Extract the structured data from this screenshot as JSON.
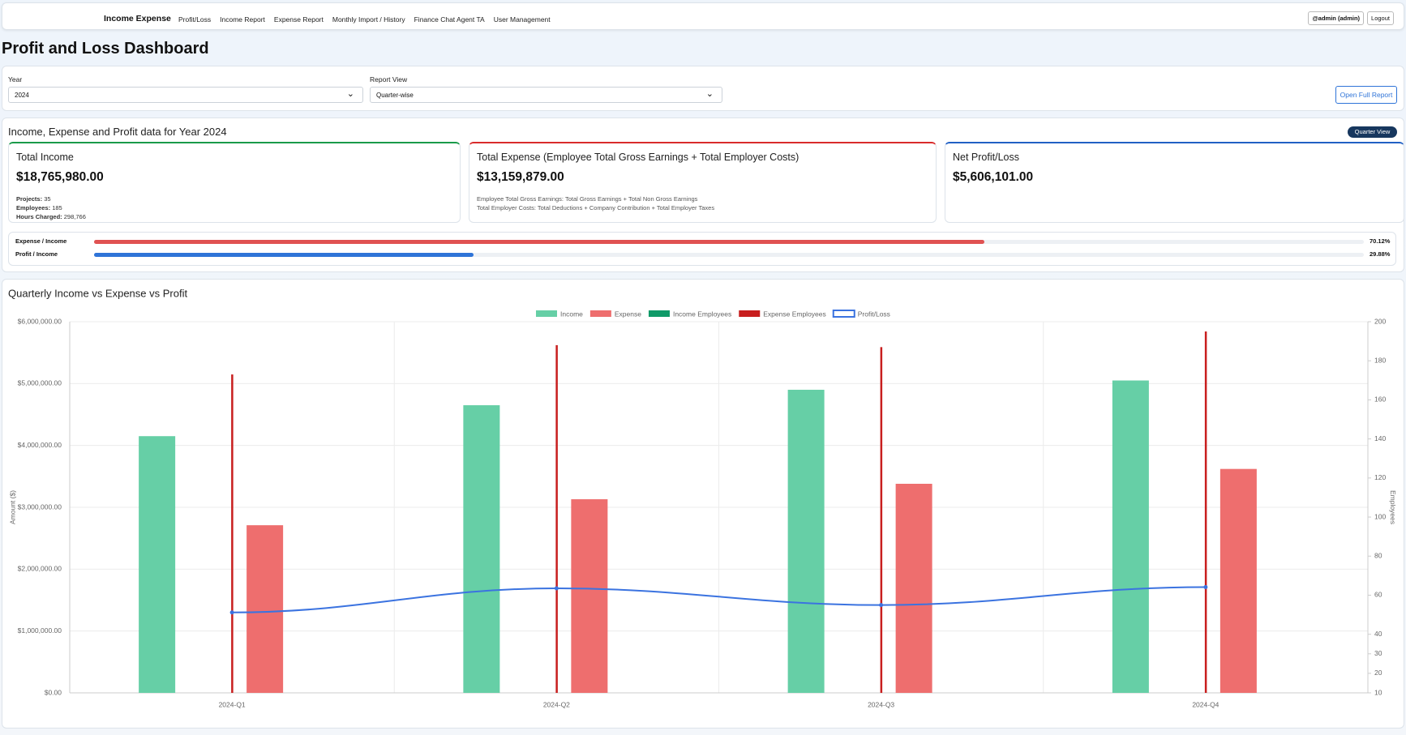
{
  "nav": {
    "brand": "Income Expense",
    "links": [
      "Profit/Loss",
      "Income Report",
      "Expense Report",
      "Monthly Import / History",
      "Finance Chat Agent TA",
      "User Management"
    ],
    "user": "@admin (admin)",
    "logout": "Logout"
  },
  "page_title": "Profit and Loss Dashboard",
  "filters": {
    "year_label": "Year",
    "year": "2024",
    "view_label": "Report View",
    "view": "Quarter-wise",
    "button": "Open Full Report"
  },
  "summary": {
    "title": "Income, Expense and Profit data for Year 2024",
    "badge": "Quarter View",
    "cards": [
      {
        "title": "Total Income",
        "value": "$18,765,980.00",
        "details": [
          {
            "label": "Projects:",
            "value": "35"
          },
          {
            "label": "Employees:",
            "value": "185"
          },
          {
            "label": "Hours Charged:",
            "value": "298,766"
          }
        ]
      },
      {
        "title": "Total Expense (Employee Total Gross Earnings + Total Employer Costs)",
        "value": "$13,159,879.00",
        "notes": [
          "Employee Total Gross Earnings: Total Gross Earnings + Total Non Gross Earnings",
          "Total Employer Costs: Total Deductions + Company Contribution + Total Employer Taxes"
        ]
      },
      {
        "title": "Net Profit/Loss",
        "value": "$5,606,101.00"
      }
    ],
    "ratios": [
      {
        "label": "Expense / Income",
        "value": 70.12,
        "value_label": "70.12%",
        "color": "#e05252"
      },
      {
        "label": "Profit / Income",
        "value": 29.88,
        "value_label": "29.88%",
        "color": "#2f74d8"
      }
    ]
  },
  "chart_data": {
    "type": "bar",
    "title": "Quarterly Income vs Expense vs Profit",
    "categories": [
      "2024-Q1",
      "2024-Q2",
      "2024-Q3",
      "2024-Q4"
    ],
    "series": [
      {
        "name": "Income",
        "color": "#66cfa6",
        "values": [
          4150000,
          4650000,
          4900000,
          5050000
        ]
      },
      {
        "name": "Expense",
        "color": "#ee6e6e",
        "values": [
          2710000,
          3130000,
          3380000,
          3620000
        ]
      },
      {
        "name": "Income Employees",
        "color": "#0f9a68",
        "axis": "y2",
        "values": [
          null,
          null,
          null,
          null
        ]
      },
      {
        "name": "Expense Employees",
        "color": "#c81e1e",
        "axis": "y2",
        "values": [
          173,
          188,
          187,
          195
        ]
      },
      {
        "name": "Profit/Loss",
        "color": "#3b73e0",
        "type": "line",
        "values": [
          1300000,
          1690000,
          1420000,
          1710000
        ]
      }
    ],
    "ylabel": "Amount ($)",
    "y2label": "Employees",
    "ylim": [
      0,
      6000000
    ],
    "yticks": [
      {
        "value": 0,
        "label": "$0.00"
      },
      {
        "value": 1000000,
        "label": "$1,000,000.00"
      },
      {
        "value": 2000000,
        "label": "$2,000,000.00"
      },
      {
        "value": 3000000,
        "label": "$3,000,000.00"
      },
      {
        "value": 4000000,
        "label": "$4,000,000.00"
      },
      {
        "value": 5000000,
        "label": "$5,000,000.00"
      },
      {
        "value": 6000000,
        "label": "$6,000,000.00"
      }
    ],
    "y2lim": [
      10,
      200
    ],
    "y2ticks": [
      10,
      20,
      30,
      40,
      60,
      80,
      100,
      120,
      140,
      160,
      180,
      200
    ],
    "grid": true
  }
}
